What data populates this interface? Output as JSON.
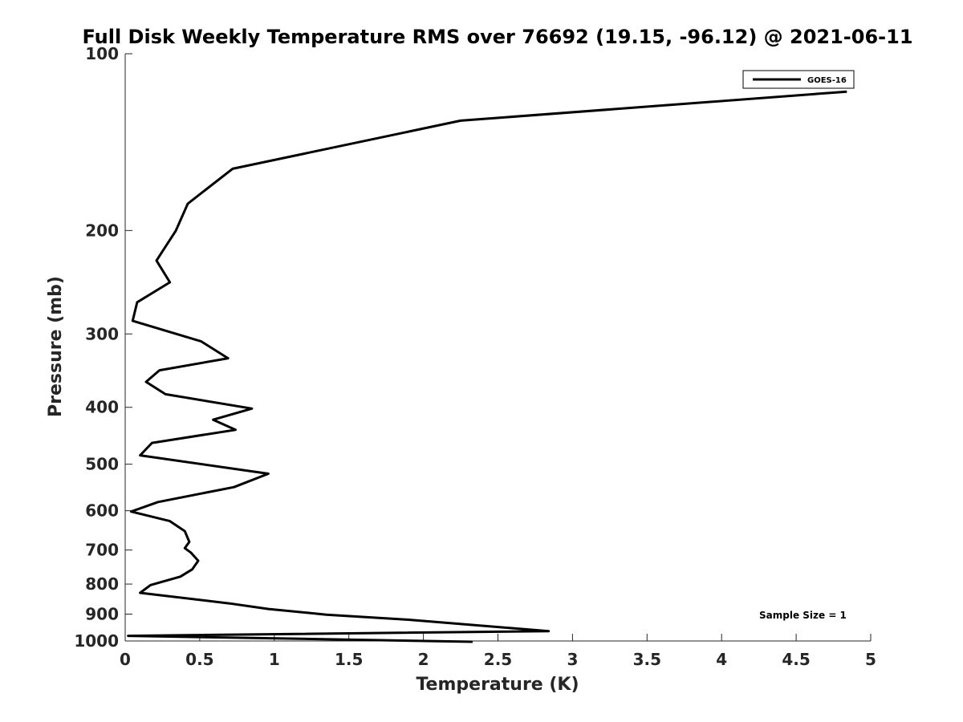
{
  "chart_data": {
    "type": "line",
    "title": "Full Disk Weekly Temperature RMS over 76692 (19.15, -96.12) @ 2021-06-11",
    "xlabel": "Temperature (K)",
    "ylabel": "Pressure (mb)",
    "xlim": [
      0,
      5
    ],
    "ylim": [
      100,
      1000
    ],
    "y_scale": "log",
    "y_reversed": true,
    "x_ticks": [
      "0",
      "0.5",
      "1",
      "1.5",
      "2",
      "2.5",
      "3",
      "3.5",
      "4",
      "4.5",
      "5"
    ],
    "y_ticks": [
      "100",
      "200",
      "300",
      "400",
      "500",
      "600",
      "700",
      "800",
      "900",
      "1000"
    ],
    "grid": false,
    "legend_position": "top-right",
    "series": [
      {
        "name": "GOES-16",
        "color": "#000000",
        "points": [
          [
            4.84,
            116
          ],
          [
            2.25,
            130
          ],
          [
            0.72,
            157
          ],
          [
            0.42,
            180
          ],
          [
            0.34,
            200
          ],
          [
            0.21,
            225
          ],
          [
            0.3,
            245
          ],
          [
            0.08,
            265
          ],
          [
            0.05,
            285
          ],
          [
            0.51,
            309
          ],
          [
            0.69,
            330
          ],
          [
            0.23,
            346
          ],
          [
            0.14,
            362
          ],
          [
            0.27,
            380
          ],
          [
            0.85,
            402
          ],
          [
            0.59,
            420
          ],
          [
            0.74,
            437
          ],
          [
            0.18,
            460
          ],
          [
            0.1,
            483
          ],
          [
            0.96,
            519
          ],
          [
            0.73,
            547
          ],
          [
            0.22,
            580
          ],
          [
            0.04,
            602
          ],
          [
            0.3,
            625
          ],
          [
            0.4,
            650
          ],
          [
            0.43,
            678
          ],
          [
            0.4,
            695
          ],
          [
            0.44,
            707
          ],
          [
            0.49,
            730
          ],
          [
            0.45,
            755
          ],
          [
            0.37,
            777
          ],
          [
            0.17,
            803
          ],
          [
            0.1,
            828
          ],
          [
            0.7,
            863
          ],
          [
            0.96,
            882
          ],
          [
            1.35,
            902
          ],
          [
            1.9,
            920
          ],
          [
            2.84,
            962
          ],
          [
            0.02,
            980
          ],
          [
            2.33,
            1003
          ]
        ]
      }
    ],
    "annotations": [
      "Sample Size = 1"
    ]
  }
}
